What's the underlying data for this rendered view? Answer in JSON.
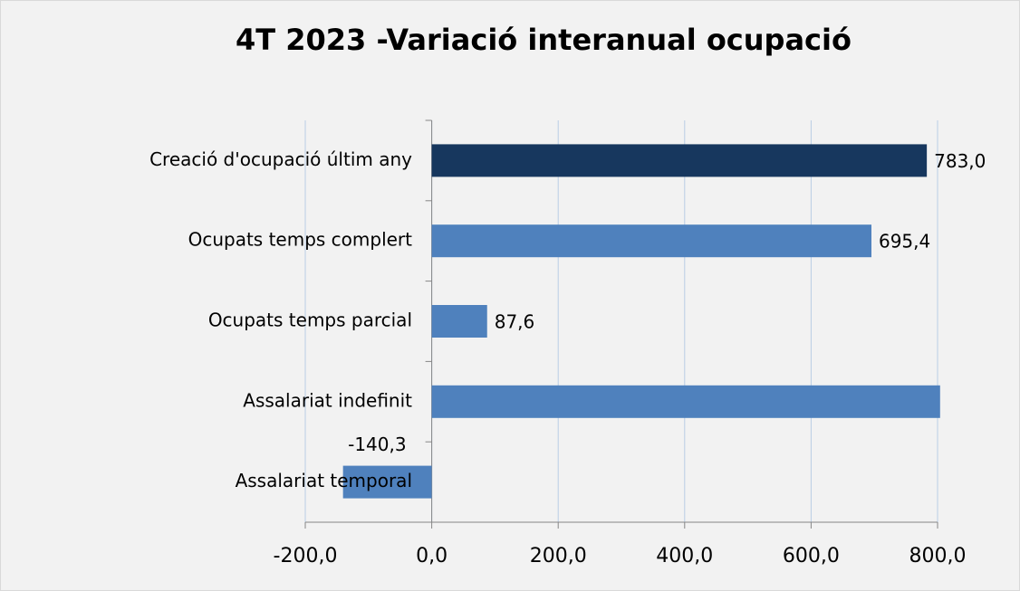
{
  "chart_data": {
    "type": "barh",
    "title": "4T 2023 -Variació interanual ocupació",
    "categories": [
      "Creació d'ocupació últim any",
      "Ocupats temps complert",
      "Ocupats temps parcial",
      "Assalariat indefinit",
      "Assalariat temporal"
    ],
    "values": [
      783.0,
      695.4,
      87.6,
      804,
      -140.3
    ],
    "value_labels": [
      "783,0",
      "695,4",
      "87,6",
      null,
      "-140,3"
    ],
    "colors": [
      "#17375e",
      "#4f81bd",
      "#4f81bd",
      "#4f81bd",
      "#4f81bd"
    ],
    "xlim": [
      -200,
      800
    ],
    "xticks": [
      {
        "value": -200,
        "label": "-200,0"
      },
      {
        "value": 0,
        "label": "0,0"
      },
      {
        "value": 200,
        "label": "200,0"
      },
      {
        "value": 400,
        "label": "400,0"
      },
      {
        "value": 600,
        "label": "600,0"
      },
      {
        "value": 800,
        "label": "800,0"
      }
    ],
    "grid": true
  }
}
